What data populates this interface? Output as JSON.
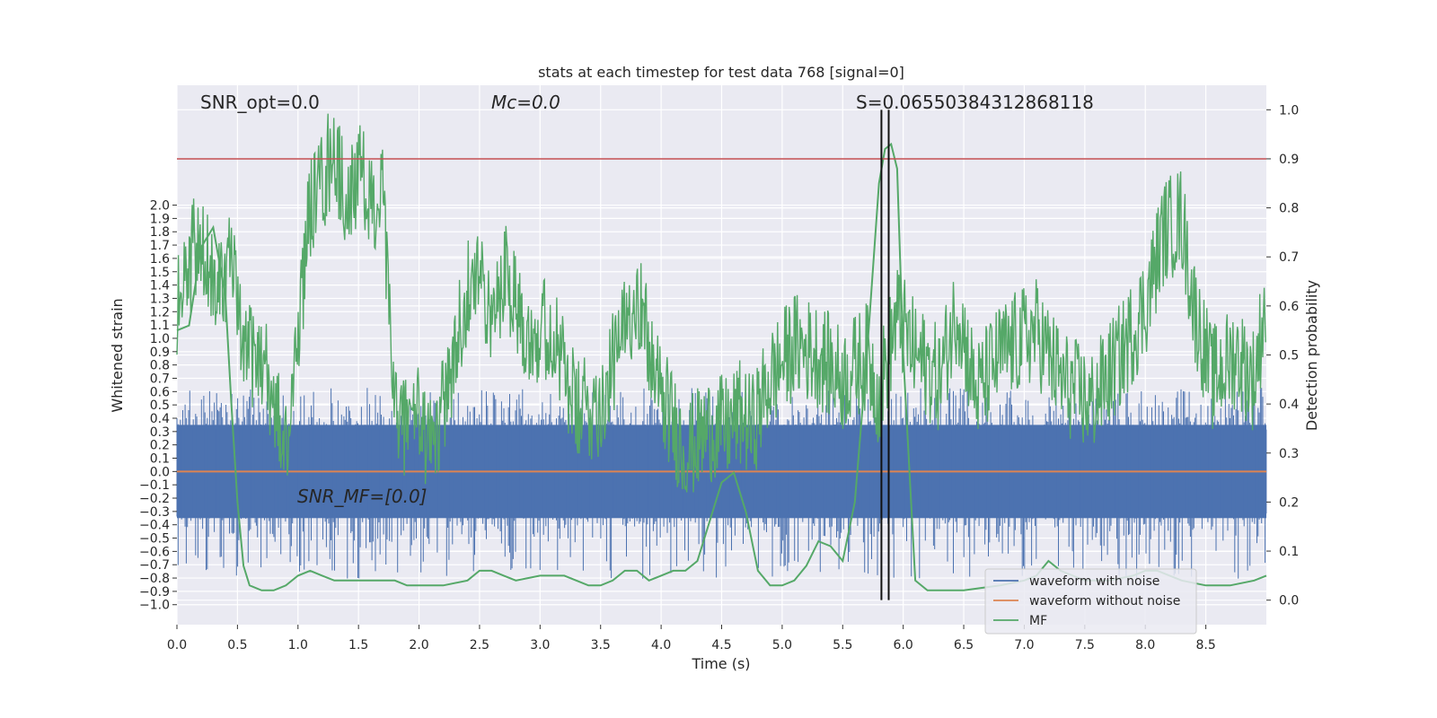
{
  "chart_data": {
    "type": "line",
    "title": "stats at each timestep for test data 768 [signal=0]",
    "xlabel": "Time (s)",
    "ylabel_left": "Whitened strain",
    "ylabel_right": "Detection probability",
    "xlim": [
      0,
      9.0
    ],
    "ylim_left": [
      -1.15,
      2.9
    ],
    "ylim_right": [
      -0.05,
      1.05
    ],
    "x_ticks": [
      "0.0",
      "0.5",
      "1.0",
      "1.5",
      "2.0",
      "2.5",
      "3.0",
      "3.5",
      "4.0",
      "4.5",
      "5.0",
      "5.5",
      "6.0",
      "6.5",
      "7.0",
      "7.5",
      "8.0",
      "8.5"
    ],
    "y_left_ticks": [
      "2.0",
      "1.9",
      "1.8",
      "1.7",
      "1.6",
      "1.5",
      "1.4",
      "1.3",
      "1.2",
      "1.1",
      "1.0",
      "0.9",
      "0.8",
      "0.7",
      "0.6",
      "0.5",
      "0.4",
      "0.3",
      "0.2",
      "0.1",
      "0.0",
      "−0.1",
      "−0.2",
      "−0.3",
      "−0.4",
      "−0.5",
      "−0.6",
      "−0.7",
      "−0.8",
      "−0.9",
      "−1.0"
    ],
    "y_right_ticks": [
      "1.0",
      "0.9",
      "0.8",
      "0.7",
      "0.6",
      "0.5",
      "0.4",
      "0.3",
      "0.2",
      "0.1",
      "0.0"
    ],
    "annotations": {
      "snr_opt": "SNR_opt=0.0",
      "mc": "Mᴄ=0.0",
      "s": "S=0.06550384312868118",
      "snr_mf": "SNR_MF=[0.0]"
    },
    "threshold": {
      "value": 0.9,
      "color": "#c44e52"
    },
    "vertical_lines": [
      5.82,
      5.88
    ],
    "grid": true,
    "legend_position": "lower right",
    "series": [
      {
        "name": "waveform with noise",
        "color": "#4c72b0",
        "axis": "left",
        "description": "noise band",
        "envelope": {
          "typical_max": 0.35,
          "typical_min": -0.35,
          "spike_max": 0.65,
          "spike_min": -0.95
        }
      },
      {
        "name": "waveform without noise",
        "color": "#dd8452",
        "axis": "left",
        "x": [
          0,
          9.0
        ],
        "y": [
          0.0,
          0.0
        ]
      },
      {
        "name": "MF",
        "color": "#55a868",
        "axis": "right",
        "smooth_x": [
          0.0,
          0.1,
          0.2,
          0.3,
          0.4,
          0.45,
          0.5,
          0.55,
          0.6,
          0.7,
          0.8,
          0.9,
          1.0,
          1.1,
          1.2,
          1.3,
          1.4,
          1.5,
          1.6,
          1.7,
          1.8,
          1.9,
          2.0,
          2.2,
          2.4,
          2.5,
          2.6,
          2.7,
          2.8,
          3.0,
          3.2,
          3.4,
          3.5,
          3.6,
          3.7,
          3.8,
          3.9,
          4.0,
          4.1,
          4.2,
          4.3,
          4.4,
          4.5,
          4.6,
          4.7,
          4.8,
          4.9,
          5.0,
          5.1,
          5.2,
          5.3,
          5.4,
          5.5,
          5.6,
          5.7,
          5.8,
          5.85,
          5.9,
          5.95,
          6.0,
          6.1,
          6.2,
          6.3,
          6.5,
          6.8,
          7.0,
          7.1,
          7.2,
          7.3,
          7.5,
          7.7,
          7.9,
          8.0,
          8.1,
          8.3,
          8.5,
          8.7,
          8.9,
          9.0
        ],
        "smooth_y": [
          0.55,
          0.56,
          0.72,
          0.76,
          0.62,
          0.4,
          0.2,
          0.07,
          0.03,
          0.02,
          0.02,
          0.03,
          0.05,
          0.06,
          0.05,
          0.04,
          0.04,
          0.04,
          0.04,
          0.04,
          0.04,
          0.03,
          0.03,
          0.03,
          0.04,
          0.06,
          0.06,
          0.05,
          0.04,
          0.05,
          0.05,
          0.03,
          0.03,
          0.04,
          0.06,
          0.06,
          0.04,
          0.05,
          0.06,
          0.06,
          0.08,
          0.16,
          0.24,
          0.26,
          0.18,
          0.06,
          0.03,
          0.03,
          0.04,
          0.07,
          0.12,
          0.11,
          0.08,
          0.2,
          0.5,
          0.85,
          0.92,
          0.93,
          0.88,
          0.5,
          0.04,
          0.02,
          0.02,
          0.02,
          0.03,
          0.04,
          0.05,
          0.08,
          0.06,
          0.04,
          0.04,
          0.05,
          0.06,
          0.06,
          0.04,
          0.03,
          0.03,
          0.04,
          0.05
        ],
        "noisy_x": [
          0.0,
          0.15,
          0.3,
          0.45,
          0.55,
          0.7,
          0.85,
          0.9,
          1.0,
          1.1,
          1.2,
          1.3,
          1.4,
          1.5,
          1.6,
          1.7,
          1.75,
          1.8,
          1.85,
          1.95,
          2.1,
          2.3,
          2.45,
          2.6,
          2.7,
          2.9,
          3.1,
          3.3,
          3.5,
          3.7,
          3.8,
          3.95,
          4.2,
          4.4,
          4.55,
          4.65,
          4.75,
          4.9,
          5.1,
          5.3,
          5.5,
          5.7,
          5.8,
          5.95,
          6.1,
          6.3,
          6.45,
          6.6,
          6.8,
          7.1,
          7.3,
          7.55,
          7.8,
          8.0,
          8.15,
          8.3,
          8.4,
          8.55,
          8.75,
          8.9,
          9.0
        ],
        "noisy_y": [
          0.6,
          0.72,
          0.66,
          0.68,
          0.5,
          0.5,
          0.35,
          0.3,
          0.55,
          0.8,
          0.85,
          0.92,
          0.8,
          0.88,
          0.8,
          0.82,
          0.58,
          0.4,
          0.35,
          0.4,
          0.3,
          0.5,
          0.7,
          0.55,
          0.68,
          0.55,
          0.55,
          0.38,
          0.4,
          0.55,
          0.64,
          0.45,
          0.3,
          0.35,
          0.35,
          0.38,
          0.35,
          0.45,
          0.52,
          0.5,
          0.45,
          0.5,
          0.42,
          0.58,
          0.5,
          0.45,
          0.6,
          0.42,
          0.5,
          0.55,
          0.45,
          0.4,
          0.5,
          0.6,
          0.75,
          0.78,
          0.6,
          0.45,
          0.5,
          0.45,
          0.62
        ]
      }
    ]
  },
  "legend": [
    {
      "label": "waveform with noise",
      "color": "#4c72b0"
    },
    {
      "label": "waveform without noise",
      "color": "#dd8452"
    },
    {
      "label": "MF",
      "color": "#55a868"
    }
  ]
}
